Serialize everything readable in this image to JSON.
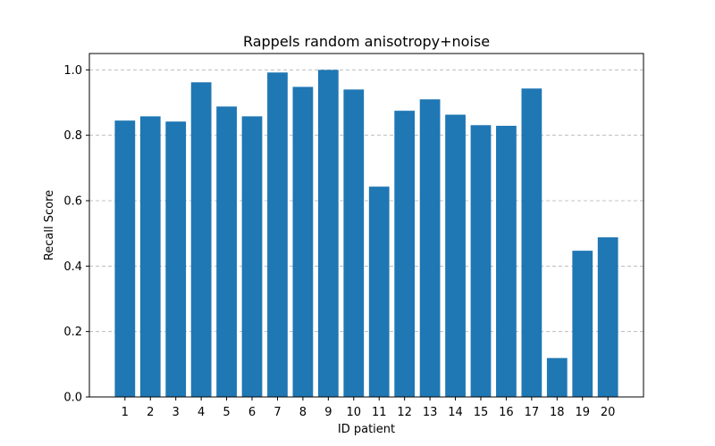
{
  "chart_data": {
    "type": "bar",
    "title": "Rappels random anisotropy+noise",
    "xlabel": "ID patient",
    "ylabel": "Recall Score",
    "categories": [
      "1",
      "2",
      "3",
      "4",
      "5",
      "6",
      "7",
      "8",
      "9",
      "10",
      "11",
      "12",
      "13",
      "14",
      "15",
      "16",
      "17",
      "18",
      "19",
      "20"
    ],
    "values": [
      0.845,
      0.858,
      0.842,
      0.962,
      0.888,
      0.858,
      0.992,
      0.948,
      1.0,
      0.94,
      0.643,
      0.875,
      0.91,
      0.863,
      0.831,
      0.829,
      0.943,
      0.119,
      0.447,
      0.488
    ],
    "ylim": [
      0,
      1.05
    ],
    "yticks": [
      0.0,
      0.2,
      0.4,
      0.6,
      0.8,
      1.0
    ],
    "ytick_labels": [
      "0.0",
      "0.2",
      "0.4",
      "0.6",
      "0.8",
      "1.0"
    ],
    "grid": "y-dashed",
    "bar_color": "#1f77b4",
    "grid_color": "#b0b0b0"
  }
}
